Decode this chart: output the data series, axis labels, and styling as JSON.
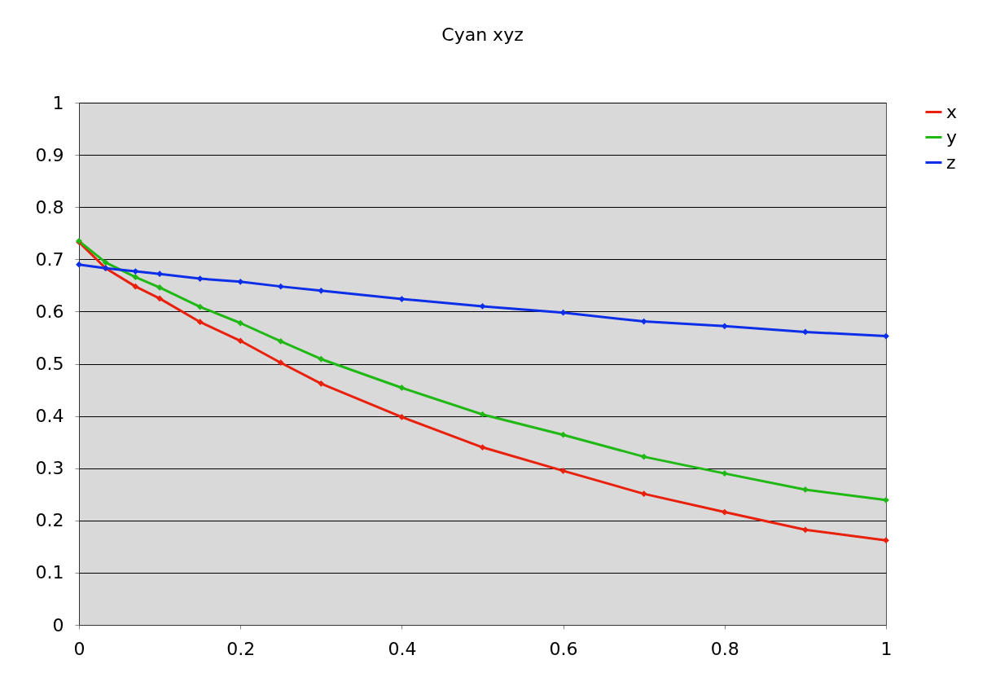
{
  "chart_data": {
    "type": "line",
    "title": "Cyan xyz",
    "x": [
      0,
      0.033,
      0.07,
      0.1,
      0.15,
      0.2,
      0.25,
      0.3,
      0.4,
      0.5,
      0.6,
      0.7,
      0.8,
      0.9,
      1
    ],
    "series": [
      {
        "name": "x",
        "color": "#e8200c",
        "values": [
          0.733,
          0.683,
          0.648,
          0.625,
          0.58,
          0.544,
          0.502,
          0.462,
          0.398,
          0.34,
          0.295,
          0.251,
          0.216,
          0.182,
          0.162
        ]
      },
      {
        "name": "y",
        "color": "#1fb814",
        "values": [
          0.735,
          0.694,
          0.666,
          0.646,
          0.609,
          0.578,
          0.543,
          0.509,
          0.454,
          0.403,
          0.364,
          0.322,
          0.29,
          0.259,
          0.239
        ]
      },
      {
        "name": "z",
        "color": "#0c2ee8",
        "values": [
          0.69,
          0.683,
          0.677,
          0.672,
          0.663,
          0.657,
          0.648,
          0.64,
          0.624,
          0.61,
          0.598,
          0.581,
          0.572,
          0.561,
          0.553
        ]
      }
    ],
    "xlim": [
      0,
      1
    ],
    "xticks": [
      0,
      0.2,
      0.4,
      0.6,
      0.8,
      1
    ],
    "ylim": [
      0,
      1
    ],
    "yticks": [
      0,
      0.1,
      0.2,
      0.3,
      0.4,
      0.5,
      0.6,
      0.7,
      0.8,
      0.9,
      1
    ],
    "grid": "y",
    "legend": "right",
    "marker": "diamond",
    "line_style": "solid"
  }
}
